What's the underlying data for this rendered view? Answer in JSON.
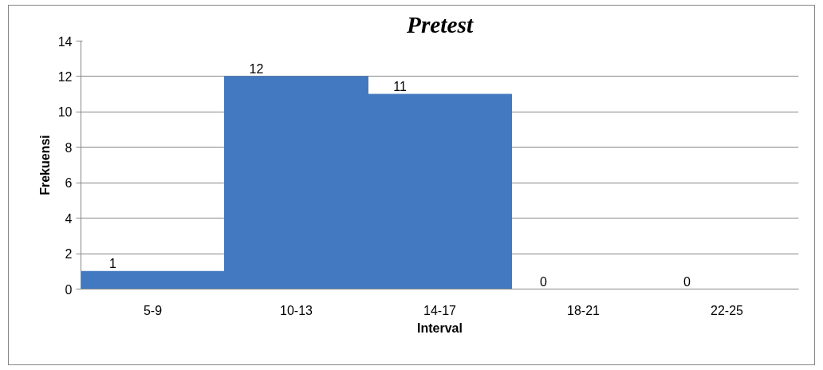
{
  "chart_data": {
    "type": "bar",
    "title": "Pretest",
    "xlabel": "Interval",
    "ylabel": "Frekuensi",
    "categories": [
      "5-9",
      "10-13",
      "14-17",
      "18-21",
      "22-25"
    ],
    "values": [
      1,
      12,
      11,
      0,
      0
    ],
    "color": "#4279c0",
    "ylim": [
      0,
      14
    ],
    "yticks": [
      0,
      2,
      4,
      6,
      8,
      10,
      12,
      14
    ],
    "grid": "y",
    "data_labels": true
  }
}
